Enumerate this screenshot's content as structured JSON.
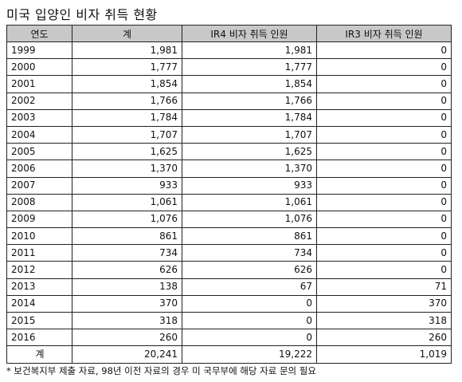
{
  "title": "미국 입양인 비자 취득 현황",
  "table": {
    "headers": [
      "연도",
      "계",
      "IR4 비자 취득 인원",
      "IR3 비자 취득 인원"
    ],
    "rows": [
      [
        "1999",
        "1,981",
        "1,981",
        "0"
      ],
      [
        "2000",
        "1,777",
        "1,777",
        "0"
      ],
      [
        "2001",
        "1,854",
        "1,854",
        "0"
      ],
      [
        "2002",
        "1,766",
        "1,766",
        "0"
      ],
      [
        "2003",
        "1,784",
        "1,784",
        "0"
      ],
      [
        "2004",
        "1,707",
        "1,707",
        "0"
      ],
      [
        "2005",
        "1,625",
        "1,625",
        "0"
      ],
      [
        "2006",
        "1,370",
        "1,370",
        "0"
      ],
      [
        "2007",
        "933",
        "933",
        "0"
      ],
      [
        "2008",
        "1,061",
        "1,061",
        "0"
      ],
      [
        "2009",
        "1,076",
        "1,076",
        "0"
      ],
      [
        "2010",
        "861",
        "861",
        "0"
      ],
      [
        "2011",
        "734",
        "734",
        "0"
      ],
      [
        "2012",
        "626",
        "626",
        "0"
      ],
      [
        "2013",
        "138",
        "67",
        "71"
      ],
      [
        "2014",
        "370",
        "0",
        "370"
      ],
      [
        "2015",
        "318",
        "0",
        "318"
      ],
      [
        "2016",
        "260",
        "0",
        "260"
      ]
    ],
    "total": [
      "계",
      "20,241",
      "19,222",
      "1,019"
    ]
  },
  "footnote": "* 보건복지부 제출 자료, 98년 이전 자료의 경우 미 국무부에 해당 자료 문의 필요"
}
